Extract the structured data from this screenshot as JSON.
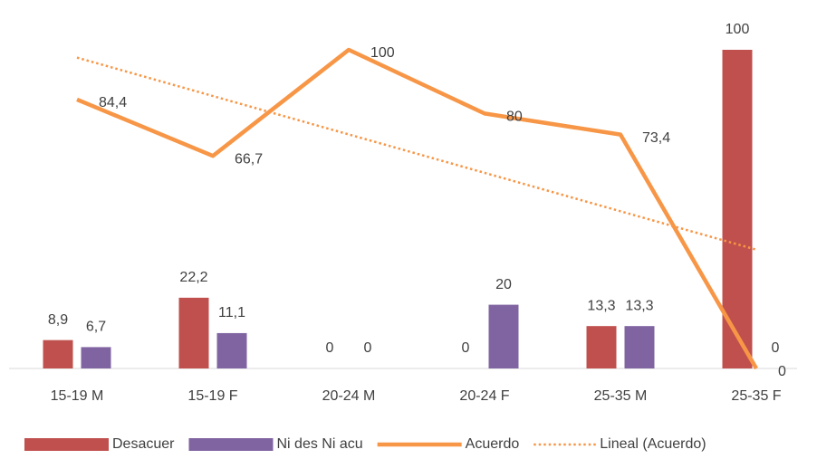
{
  "chart_data": {
    "type": "bar_line",
    "categories": [
      "15-19 M",
      "15-19 F",
      "20-24 M",
      "20-24 F",
      "25-35 M",
      "25-35 F"
    ],
    "series": [
      {
        "name": "Desacuer",
        "type": "bar",
        "color": "#c0504d",
        "values": [
          8.9,
          22.2,
          0,
          0,
          13.3,
          100
        ],
        "value_labels": [
          "8,9",
          "22,2",
          "0",
          "0",
          "13,3",
          "100"
        ]
      },
      {
        "name": "Ni des Ni acu",
        "type": "bar",
        "color": "#8064a2",
        "values": [
          6.7,
          11.1,
          0,
          20,
          13.3,
          0
        ],
        "value_labels": [
          "6,7",
          "11,1",
          "0",
          "20",
          "13,3",
          "0"
        ]
      },
      {
        "name": "Acuerdo",
        "type": "line",
        "color": "#f79646",
        "values": [
          84.4,
          66.7,
          100,
          80,
          73.4,
          0
        ],
        "value_labels": [
          "84,4",
          "66,7",
          "100",
          "80",
          "73,4",
          "0"
        ]
      }
    ],
    "trendline": {
      "name": "Lineal (Acuerdo)",
      "series": 2,
      "color": "#f79646",
      "dotted": true
    },
    "ylim": [
      0,
      100
    ],
    "legend": "bottom"
  }
}
